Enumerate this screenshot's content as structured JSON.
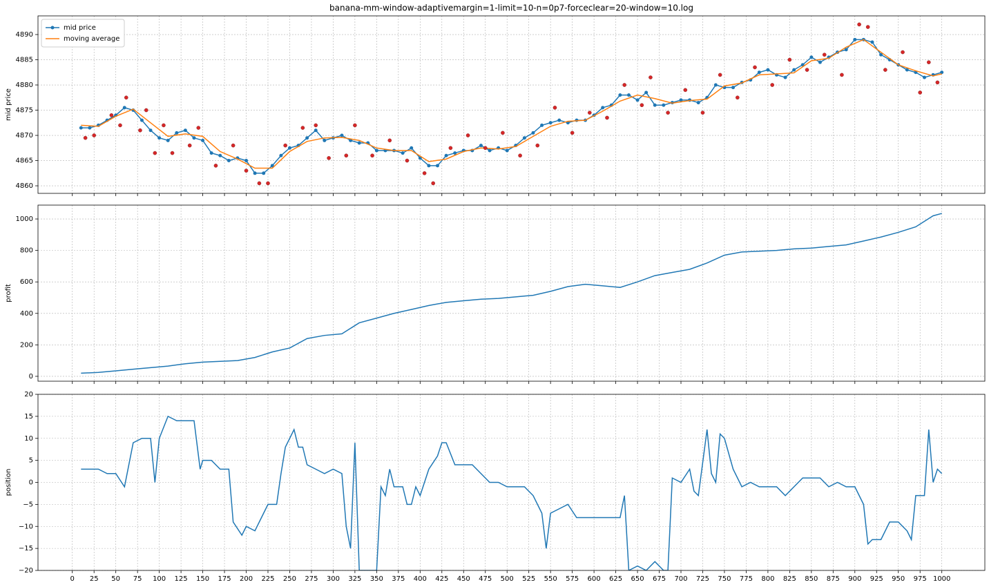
{
  "chart_data": [
    {
      "type": "line",
      "title": "banana-mm-window-adaptivemargin=1-limit=10-n=0p7-forceclear=20-window=10.log",
      "ylabel": "mid price",
      "grid": true,
      "legend": "upper left",
      "xticklabels": false,
      "xlim": [
        -39.5,
        1049.5
      ],
      "xticks": [
        0,
        25,
        50,
        75,
        100,
        125,
        150,
        175,
        200,
        225,
        250,
        275,
        300,
        325,
        350,
        375,
        400,
        425,
        450,
        475,
        500,
        525,
        550,
        575,
        600,
        625,
        650,
        675,
        700,
        725,
        750,
        775,
        800,
        825,
        850,
        875,
        900,
        925,
        950,
        975,
        1000
      ],
      "ylim": [
        4858.5,
        4893.7
      ],
      "yticks": [
        4860,
        4865,
        4870,
        4875,
        4880,
        4885,
        4890
      ],
      "x": [
        10,
        20,
        30,
        40,
        50,
        60,
        70,
        80,
        90,
        100,
        110,
        120,
        130,
        140,
        150,
        160,
        170,
        180,
        190,
        200,
        210,
        220,
        230,
        240,
        250,
        260,
        270,
        280,
        290,
        300,
        310,
        320,
        330,
        340,
        350,
        360,
        370,
        380,
        390,
        400,
        410,
        420,
        430,
        440,
        450,
        460,
        470,
        480,
        490,
        500,
        510,
        520,
        530,
        540,
        550,
        560,
        570,
        580,
        590,
        600,
        610,
        620,
        630,
        640,
        650,
        660,
        670,
        680,
        690,
        700,
        710,
        720,
        730,
        740,
        750,
        760,
        770,
        780,
        790,
        800,
        810,
        820,
        830,
        840,
        850,
        860,
        870,
        880,
        890,
        900,
        910,
        920,
        930,
        940,
        950,
        960,
        970,
        980,
        990,
        1000
      ],
      "series": [
        {
          "name": "mid price",
          "color": "#1f77b4",
          "marker": true,
          "values": [
            4871.5,
            4871.5,
            4872,
            4873,
            4874,
            4875.5,
            4875,
            4873,
            4871,
            4869.5,
            4869,
            4870.5,
            4871,
            4869.5,
            4869,
            4866.5,
            4866,
            4865,
            4865.5,
            4865,
            4862.5,
            4862.5,
            4864,
            4866,
            4867.5,
            4868,
            4869.5,
            4871,
            4869,
            4869.5,
            4870,
            4869,
            4868.5,
            4868.5,
            4867,
            4867,
            4867,
            4866.5,
            4867.5,
            4865.5,
            4864,
            4864,
            4866,
            4866.5,
            4867,
            4867,
            4868,
            4867,
            4867.5,
            4867,
            4868,
            4869.5,
            4870.5,
            4872,
            4872.5,
            4873,
            4872.5,
            4873,
            4873,
            4874,
            4875.5,
            4876,
            4878,
            4878,
            4877,
            4878.5,
            4876,
            4876,
            4876.5,
            4877,
            4877,
            4876.5,
            4877.5,
            4880,
            4879.5,
            4879.5,
            4880.5,
            4881,
            4882.5,
            4883,
            4882,
            4881.5,
            4883,
            4884,
            4885.5,
            4884.5,
            4885.5,
            4886.5,
            4887,
            4889,
            4889,
            4888.5,
            4886,
            4885,
            4884,
            4883,
            4882.5,
            4881.5,
            4882,
            4882.5
          ]
        },
        {
          "name": "moving average",
          "color": "#ff7f0e",
          "marker": false,
          "x": [
            10,
            30,
            50,
            70,
            90,
            110,
            130,
            150,
            170,
            190,
            210,
            230,
            250,
            270,
            290,
            310,
            330,
            350,
            370,
            390,
            410,
            430,
            450,
            470,
            490,
            510,
            530,
            550,
            570,
            590,
            610,
            630,
            650,
            670,
            690,
            710,
            730,
            750,
            770,
            790,
            810,
            830,
            850,
            870,
            890,
            910,
            930,
            950,
            970,
            990,
            1000
          ],
          "values": [
            4872,
            4871.8,
            4873.8,
            4875.2,
            4872.5,
            4869.8,
            4870.3,
            4869.8,
            4866.8,
            4865.3,
            4863.5,
            4863.5,
            4866.8,
            4868.8,
            4869.5,
            4869.6,
            4869,
            4867.5,
            4867,
            4867,
            4864.8,
            4865.3,
            4866.8,
            4867.5,
            4867.3,
            4867.8,
            4869.8,
            4871.8,
            4872.8,
            4873,
            4874.8,
            4876.8,
            4878,
            4877.3,
            4876.4,
            4876.9,
            4877.2,
            4879.8,
            4880.4,
            4882,
            4882.2,
            4882.4,
            4884.8,
            4885.3,
            4887.5,
            4889,
            4886.5,
            4884,
            4882.8,
            4881.8,
            4882.2
          ]
        }
      ],
      "markers": {
        "color": "#d62728",
        "x": [
          15,
          25,
          45,
          55,
          62,
          78,
          85,
          95,
          105,
          115,
          135,
          145,
          165,
          185,
          200,
          215,
          225,
          245,
          265,
          280,
          295,
          315,
          325,
          345,
          365,
          385,
          405,
          415,
          435,
          455,
          475,
          495,
          515,
          535,
          555,
          575,
          595,
          615,
          635,
          655,
          665,
          685,
          705,
          725,
          745,
          765,
          785,
          805,
          825,
          845,
          865,
          885,
          905,
          915,
          935,
          955,
          975,
          985,
          995
        ],
        "values": [
          4869.5,
          4870,
          4874,
          4872,
          4877.5,
          4871,
          4875,
          4866.5,
          4872,
          4866.5,
          4868,
          4871.5,
          4864,
          4868,
          4863,
          4860.5,
          4860.5,
          4868,
          4871.5,
          4872,
          4865.5,
          4866,
          4872,
          4866,
          4869,
          4865,
          4862.5,
          4860.5,
          4867.5,
          4870,
          4867.5,
          4870.5,
          4866,
          4868,
          4875.5,
          4870.5,
          4874.5,
          4873.5,
          4880,
          4876,
          4881.5,
          4874.5,
          4879,
          4874.5,
          4882,
          4877.5,
          4883.5,
          4880,
          4885,
          4883,
          4886,
          4882,
          4892,
          4891.5,
          4883,
          4886.5,
          4878.5,
          4884.5,
          4880.5
        ]
      }
    },
    {
      "type": "line",
      "ylabel": "profit",
      "grid": true,
      "xticklabels": false,
      "xlim": [
        -39.5,
        1049.5
      ],
      "xticks": [
        0,
        25,
        50,
        75,
        100,
        125,
        150,
        175,
        200,
        225,
        250,
        275,
        300,
        325,
        350,
        375,
        400,
        425,
        450,
        475,
        500,
        525,
        550,
        575,
        600,
        625,
        650,
        675,
        700,
        725,
        750,
        775,
        800,
        825,
        850,
        875,
        900,
        925,
        950,
        975,
        1000
      ],
      "ylim": [
        -31,
        1088
      ],
      "yticks": [
        0,
        200,
        400,
        600,
        800,
        1000
      ],
      "x": [
        10,
        30,
        50,
        70,
        90,
        110,
        130,
        150,
        170,
        190,
        210,
        230,
        250,
        270,
        290,
        310,
        330,
        350,
        370,
        390,
        410,
        430,
        450,
        470,
        490,
        510,
        530,
        550,
        570,
        590,
        610,
        630,
        650,
        670,
        690,
        710,
        730,
        750,
        770,
        790,
        810,
        830,
        850,
        870,
        890,
        910,
        930,
        950,
        970,
        990,
        1000
      ],
      "series": [
        {
          "name": "profit",
          "color": "#1f77b4",
          "marker": false,
          "values": [
            20,
            25,
            35,
            45,
            55,
            65,
            80,
            90,
            95,
            100,
            120,
            155,
            180,
            240,
            260,
            270,
            340,
            370,
            400,
            425,
            450,
            470,
            480,
            490,
            495,
            505,
            515,
            540,
            570,
            585,
            575,
            565,
            600,
            640,
            660,
            680,
            720,
            770,
            790,
            795,
            800,
            810,
            815,
            825,
            835,
            860,
            885,
            915,
            950,
            1020,
            1035
          ]
        }
      ]
    },
    {
      "type": "line",
      "ylabel": "position",
      "grid": true,
      "xticklabels": true,
      "xlim": [
        -39.5,
        1049.5
      ],
      "xticks": [
        0,
        25,
        50,
        75,
        100,
        125,
        150,
        175,
        200,
        225,
        250,
        275,
        300,
        325,
        350,
        375,
        400,
        425,
        450,
        475,
        500,
        525,
        550,
        575,
        600,
        625,
        650,
        675,
        700,
        725,
        750,
        775,
        800,
        825,
        850,
        875,
        900,
        925,
        950,
        975,
        1000
      ],
      "ylim": [
        -20,
        20
      ],
      "yticks": [
        {
          "value": -20,
          "label": "−20"
        },
        {
          "value": -15,
          "label": "−15"
        },
        {
          "value": -10,
          "label": "−10"
        },
        {
          "value": -5,
          "label": "−5"
        },
        0,
        5,
        10,
        15,
        20
      ],
      "x": [
        10,
        20,
        30,
        40,
        50,
        60,
        70,
        80,
        90,
        95,
        100,
        110,
        120,
        130,
        140,
        147,
        150,
        160,
        170,
        180,
        185,
        195,
        200,
        210,
        220,
        225,
        235,
        240,
        245,
        250,
        255,
        260,
        265,
        270,
        280,
        290,
        300,
        310,
        315,
        320,
        325,
        330,
        340,
        350,
        355,
        360,
        365,
        370,
        380,
        385,
        390,
        395,
        400,
        410,
        420,
        425,
        430,
        440,
        450,
        460,
        470,
        480,
        490,
        500,
        510,
        520,
        530,
        540,
        545,
        550,
        560,
        570,
        580,
        590,
        600,
        610,
        620,
        630,
        635,
        640,
        650,
        660,
        670,
        680,
        685,
        690,
        700,
        710,
        715,
        720,
        730,
        735,
        740,
        745,
        750,
        760,
        770,
        780,
        790,
        800,
        810,
        820,
        830,
        840,
        850,
        860,
        870,
        880,
        890,
        900,
        910,
        915,
        920,
        930,
        940,
        950,
        960,
        965,
        970,
        980,
        985,
        990,
        995,
        1000
      ],
      "series": [
        {
          "name": "position",
          "color": "#1f77b4",
          "marker": false,
          "values": [
            3,
            3,
            3,
            2,
            2,
            -1,
            9,
            10,
            10,
            0,
            10,
            15,
            14,
            14,
            14,
            3,
            5,
            5,
            3,
            3,
            -9,
            -12,
            -10,
            -11,
            -7,
            -5,
            -5,
            2,
            8,
            10,
            12,
            8,
            8,
            4,
            3,
            2,
            3,
            2,
            -10,
            -15,
            9,
            -20,
            -20,
            -20,
            -1,
            -3,
            3,
            -1,
            -1,
            -5,
            -5,
            -1,
            -3,
            3,
            6,
            9,
            9,
            4,
            4,
            4,
            2,
            0,
            0,
            -1,
            -1,
            -1,
            -3,
            -7,
            -15,
            -7,
            -6,
            -5,
            -8,
            -8,
            -8,
            -8,
            -8,
            -8,
            -3,
            -20,
            -19,
            -20,
            -18,
            -20,
            -20,
            1,
            0,
            3,
            -2,
            -3,
            12,
            2,
            0,
            11,
            10,
            3,
            -1,
            0,
            -1,
            -1,
            -1,
            -3,
            -1,
            1,
            1,
            1,
            -1,
            0,
            -1,
            -1,
            -5,
            -14,
            -13,
            -13,
            -9,
            -9,
            -11,
            -13,
            -3,
            -3,
            12,
            0,
            3,
            2
          ]
        }
      ]
    }
  ]
}
